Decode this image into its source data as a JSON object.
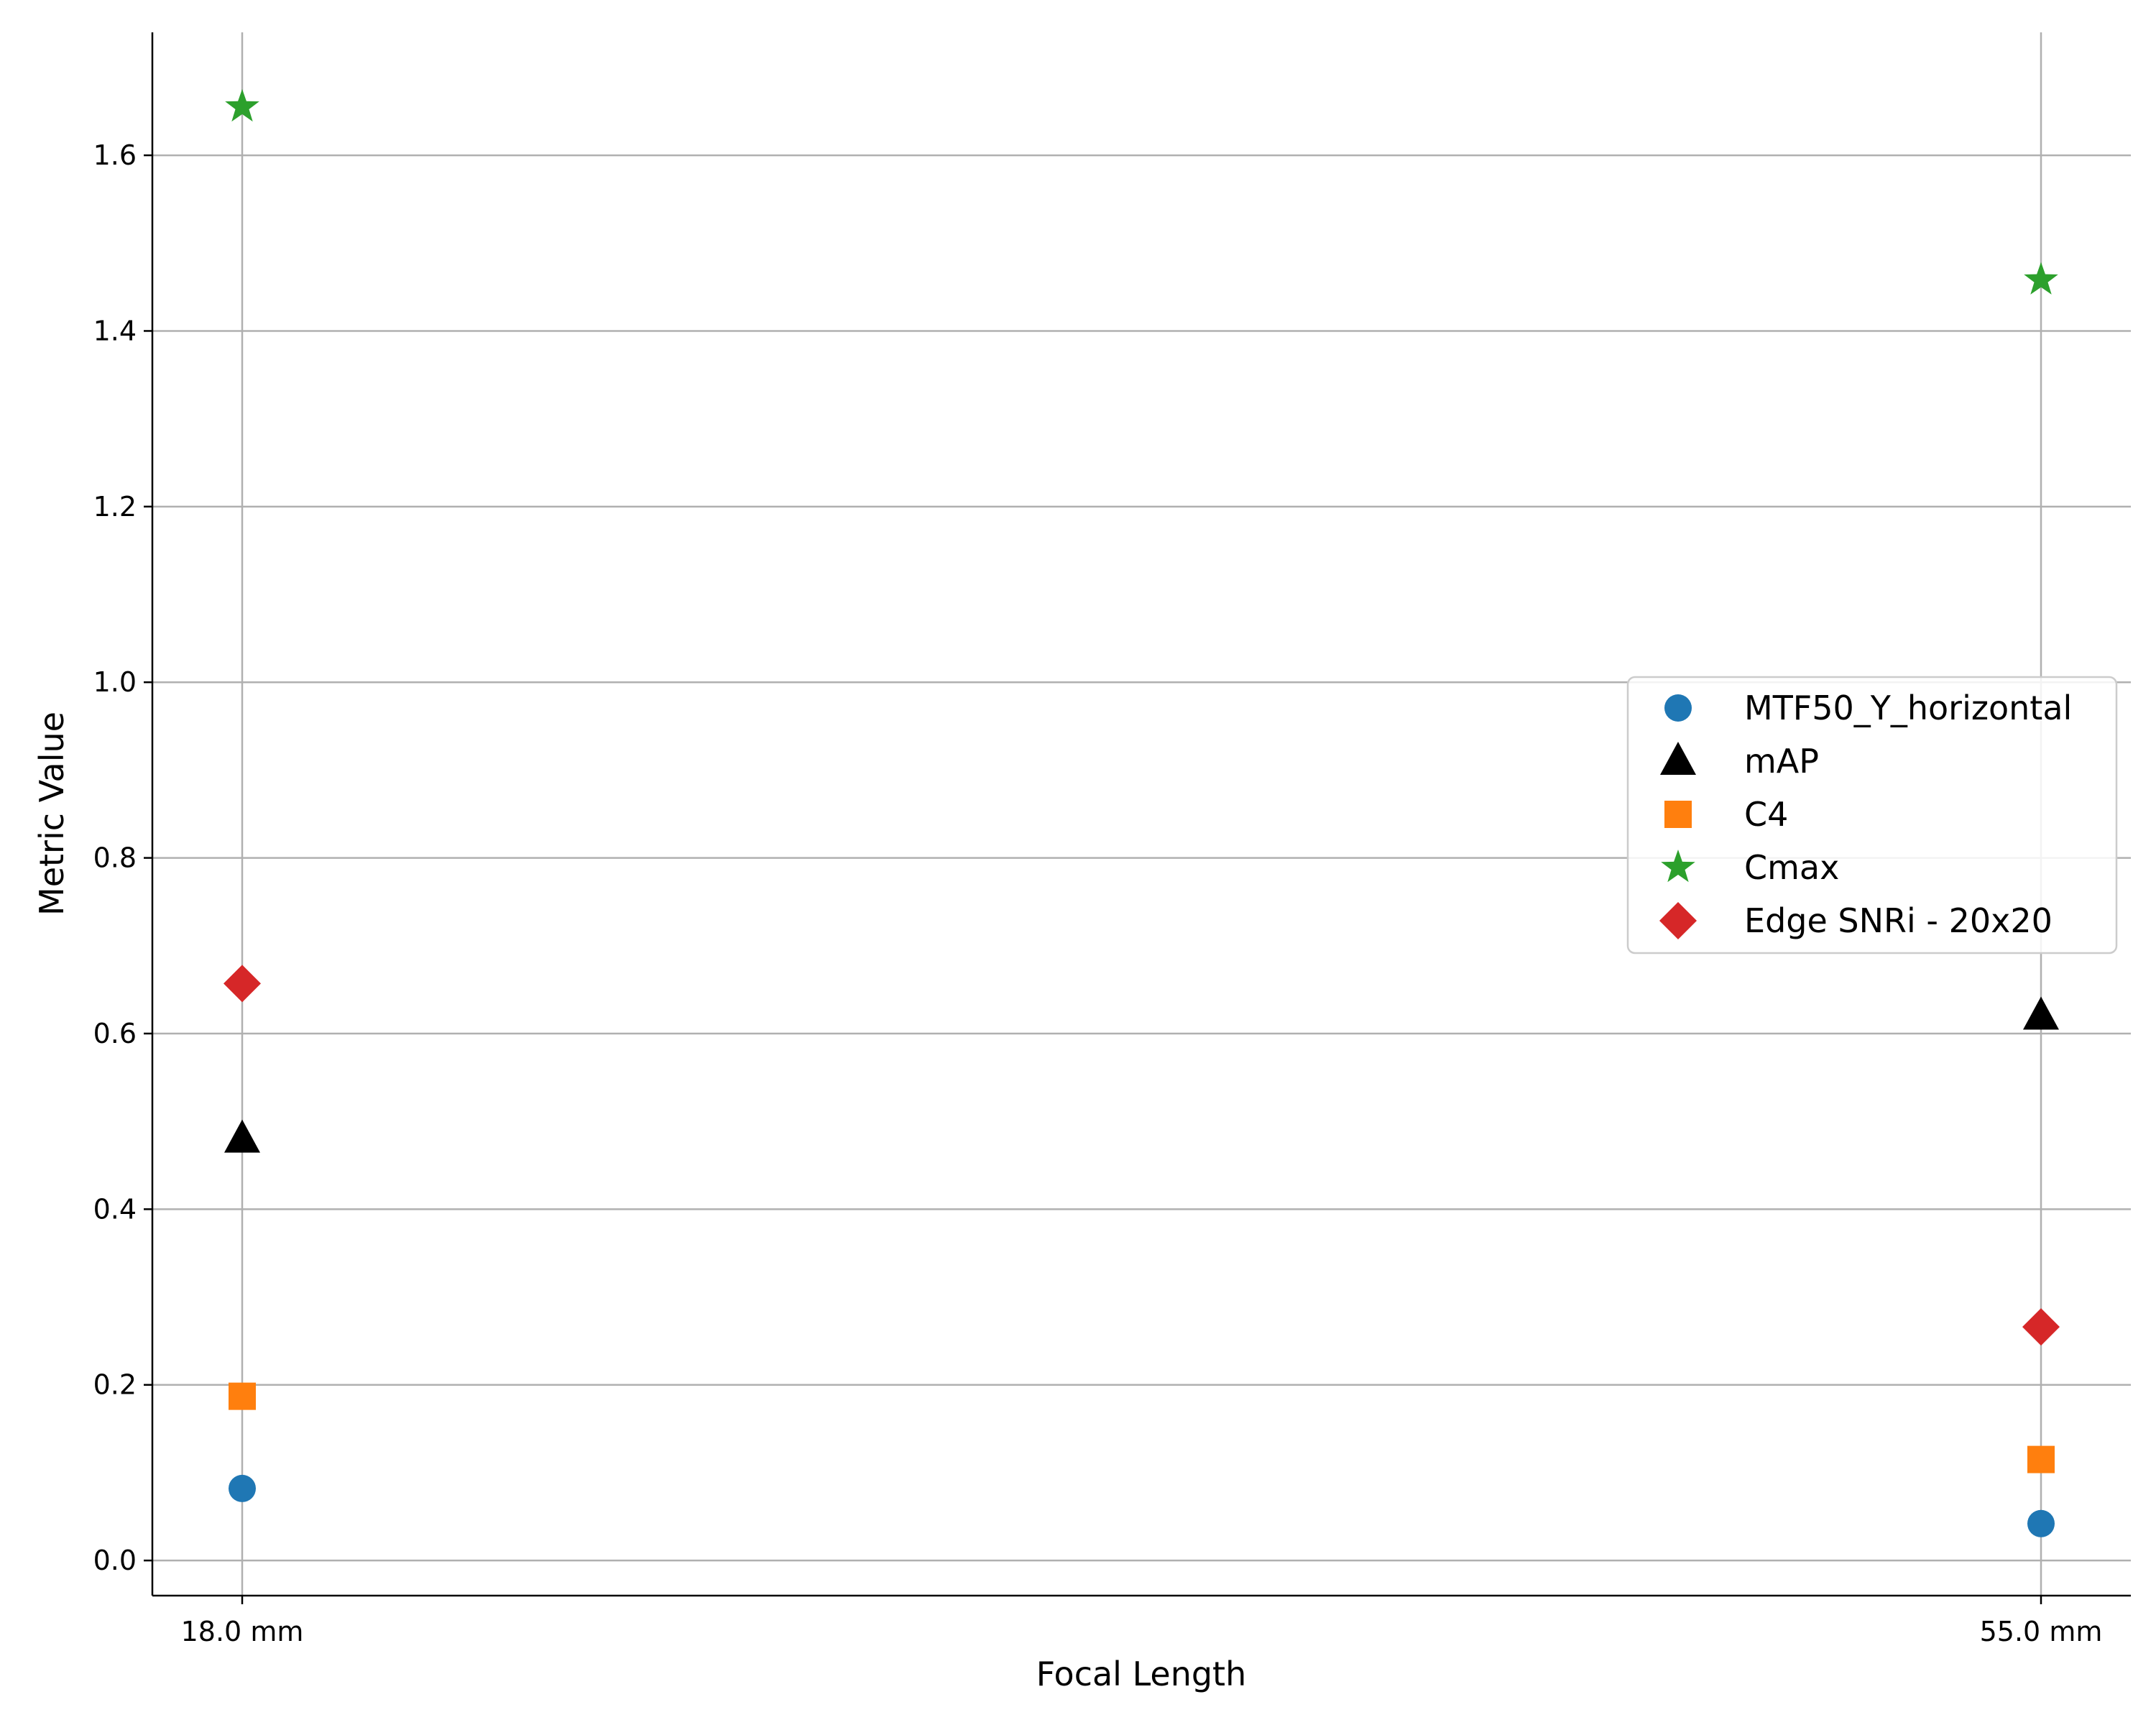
{
  "chart_data": {
    "type": "scatter",
    "title": "",
    "xlabel": "Focal Length",
    "ylabel": "Metric Value",
    "categories": [
      "18.0 mm",
      "55.0 mm"
    ],
    "ylim": [
      -0.04,
      1.74
    ],
    "yticks": [
      "0.0",
      "0.2",
      "0.4",
      "0.6",
      "0.8",
      "1.0",
      "1.2",
      "1.4",
      "1.6"
    ],
    "grid": true,
    "legend_position": "center-right",
    "series": [
      {
        "name": "MTF50_Y_horizontal",
        "marker": "circle",
        "color": "#1f77b4",
        "values": [
          0.082,
          0.042
        ]
      },
      {
        "name": "mAP",
        "marker": "triangle",
        "color": "#000000",
        "values": [
          0.48,
          0.62
        ]
      },
      {
        "name": "C4",
        "marker": "square",
        "color": "#ff7f0e",
        "values": [
          0.187,
          0.115
        ]
      },
      {
        "name": "Cmax",
        "marker": "star",
        "color": "#2ca02c",
        "values": [
          1.655,
          1.458
        ]
      },
      {
        "name": "Edge SNRi - 20x20",
        "marker": "diamond",
        "color": "#d62728",
        "values": [
          0.657,
          0.266
        ]
      }
    ]
  }
}
